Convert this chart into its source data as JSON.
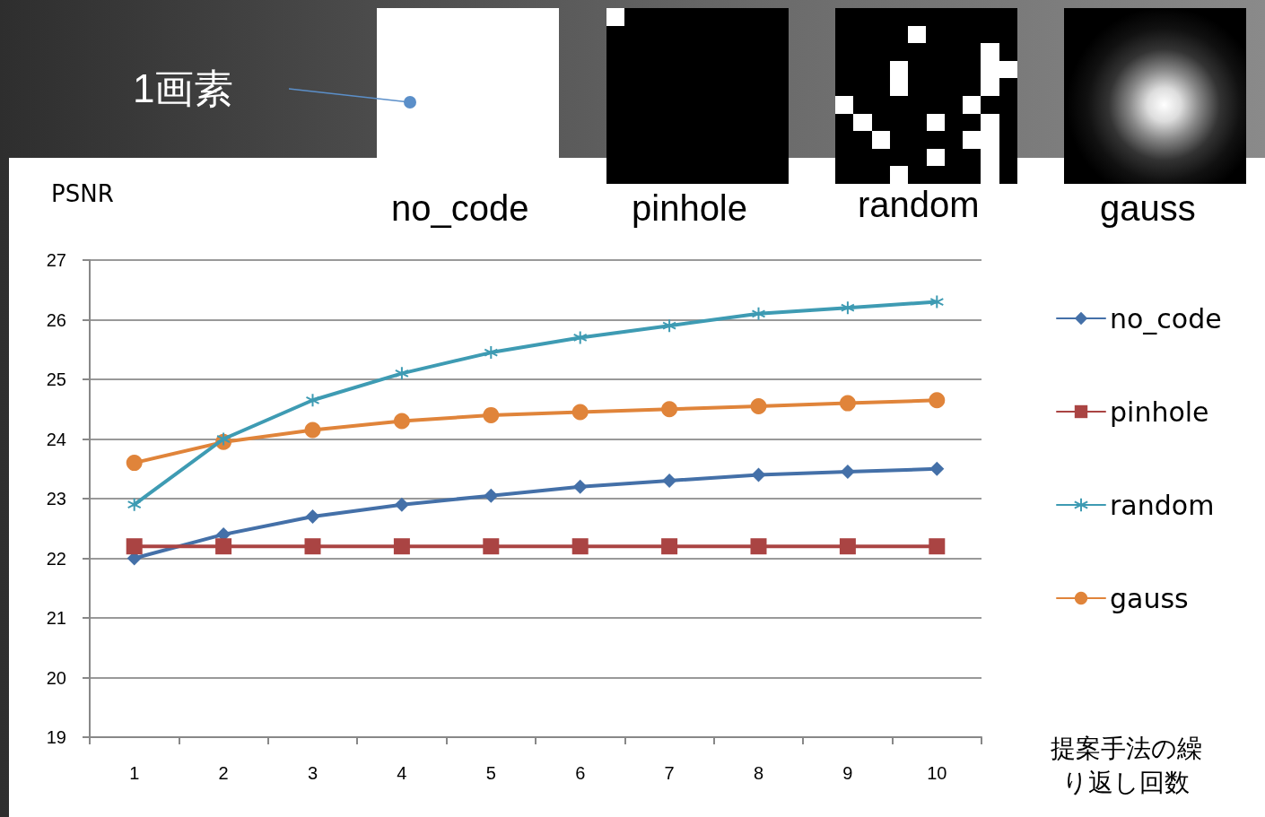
{
  "chart_data": {
    "type": "line",
    "ylabel": "PSNR",
    "xlabel": "提案手法の繰り返し回数",
    "categories": [
      "1",
      "2",
      "3",
      "4",
      "5",
      "6",
      "7",
      "8",
      "9",
      "10"
    ],
    "series": [
      {
        "name": "no_code",
        "color": "#4470a8",
        "marker": "diamond",
        "values": [
          22.0,
          22.4,
          22.7,
          22.9,
          23.05,
          23.2,
          23.3,
          23.4,
          23.45,
          23.5
        ]
      },
      {
        "name": "pinhole",
        "color": "#aa4443",
        "marker": "square",
        "values": [
          22.2,
          22.2,
          22.2,
          22.2,
          22.2,
          22.2,
          22.2,
          22.2,
          22.2,
          22.2
        ]
      },
      {
        "name": "random",
        "color": "#3e9bb3",
        "marker": "cross",
        "values": [
          22.9,
          24.0,
          24.65,
          25.1,
          25.45,
          25.7,
          25.9,
          26.1,
          26.2,
          26.3
        ]
      },
      {
        "name": "gauss",
        "color": "#e0843a",
        "marker": "circle",
        "values": [
          23.6,
          23.95,
          24.15,
          24.3,
          24.4,
          24.45,
          24.5,
          24.55,
          24.6,
          24.65
        ]
      }
    ],
    "ylim": [
      19,
      27
    ],
    "yticks": [
      19,
      20,
      21,
      22,
      23,
      24,
      25,
      26,
      27
    ],
    "grid": "y",
    "legend": "right",
    "line_style": "solid",
    "annotations": [
      "1画素",
      "no_code",
      "pinhole",
      "random",
      "gauss"
    ]
  }
}
